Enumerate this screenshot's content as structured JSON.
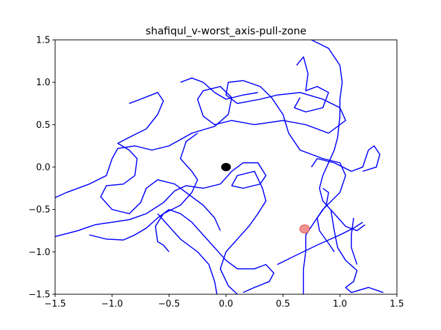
{
  "chart_data": {
    "type": "line",
    "title": "shafiqul_v-worst_axis-pull-zone",
    "xlabel": "",
    "ylabel": "",
    "xlim": [
      -1.5,
      1.5
    ],
    "ylim": [
      -1.5,
      1.5
    ],
    "x_ticks": [
      "−1.5",
      "−1.0",
      "−0.5",
      "0.0",
      "0.5",
      "1.0",
      "1.5"
    ],
    "x_tick_values": [
      -1.5,
      -1.0,
      -0.5,
      0.0,
      0.5,
      1.0,
      1.5
    ],
    "y_ticks": [
      "−1.5",
      "−1.0",
      "−0.5",
      "0.0",
      "0.5",
      "1.0",
      "1.5"
    ],
    "y_tick_values": [
      -1.5,
      -1.0,
      -0.5,
      0.0,
      0.5,
      1.0,
      1.5
    ],
    "grid": false,
    "series": [
      {
        "color": "#0000ff",
        "points": [
          [
            0.68,
            -1.5
          ],
          [
            0.68,
            -1.2
          ],
          [
            0.7,
            -1.0
          ],
          [
            0.7,
            -0.8
          ],
          [
            0.85,
            -0.5
          ],
          [
            1.0,
            -0.3
          ],
          [
            1.05,
            -0.1
          ],
          [
            1.0,
            0.05
          ],
          [
            0.85,
            0.1
          ],
          [
            0.65,
            0.2
          ],
          [
            0.55,
            0.4
          ],
          [
            0.5,
            0.62
          ],
          [
            0.4,
            0.82
          ],
          [
            0.3,
            0.95
          ],
          [
            0.15,
            1.02
          ],
          [
            0.02,
            1.0
          ],
          [
            0.0,
            0.85
          ],
          [
            0.1,
            0.75
          ],
          [
            0.3,
            0.8
          ],
          [
            0.45,
            0.85
          ],
          [
            0.65,
            0.88
          ],
          [
            0.85,
            0.8
          ],
          [
            1.0,
            0.7
          ],
          [
            1.05,
            0.55
          ],
          [
            0.9,
            0.4
          ],
          [
            0.7,
            0.5
          ],
          [
            0.5,
            0.55
          ],
          [
            0.25,
            0.5
          ],
          [
            0.05,
            0.55
          ],
          [
            -0.1,
            0.5
          ],
          [
            -0.2,
            0.6
          ],
          [
            -0.25,
            0.8
          ],
          [
            -0.2,
            0.9
          ],
          [
            -0.05,
            0.95
          ],
          [
            0.05,
            0.82
          ],
          [
            0.02,
            0.62
          ],
          [
            -0.1,
            0.48
          ],
          [
            -0.3,
            0.4
          ],
          [
            -0.5,
            0.25
          ],
          [
            -0.65,
            0.2
          ],
          [
            -0.8,
            0.25
          ],
          [
            -0.95,
            0.22
          ],
          [
            -1.0,
            0.1
          ],
          [
            -1.05,
            -0.1
          ],
          [
            -1.2,
            -0.2
          ],
          [
            -1.4,
            -0.3
          ],
          [
            -1.5,
            -0.36
          ]
        ]
      },
      {
        "color": "#0000ff",
        "points": [
          [
            -1.5,
            -0.82
          ],
          [
            -1.3,
            -0.75
          ],
          [
            -1.15,
            -0.68
          ],
          [
            -1.0,
            -0.65
          ],
          [
            -0.85,
            -0.62
          ],
          [
            -0.7,
            -0.55
          ],
          [
            -0.55,
            -0.42
          ],
          [
            -0.45,
            -0.28
          ],
          [
            -0.35,
            -0.22
          ],
          [
            -0.2,
            -0.25
          ],
          [
            -0.05,
            -0.2
          ],
          [
            0.05,
            -0.05
          ],
          [
            0.15,
            0.05
          ],
          [
            0.28,
            0.05
          ],
          [
            0.35,
            -0.1
          ],
          [
            0.3,
            -0.2
          ],
          [
            0.15,
            -0.25
          ],
          [
            0.05,
            -0.22
          ],
          [
            0.1,
            -0.1
          ],
          [
            0.25,
            -0.05
          ],
          [
            0.32,
            -0.25
          ],
          [
            0.35,
            -0.4
          ],
          [
            0.28,
            -0.55
          ],
          [
            0.2,
            -0.7
          ],
          [
            0.1,
            -0.85
          ],
          [
            0.0,
            -1.0
          ],
          [
            -0.05,
            -1.2
          ],
          [
            0.02,
            -1.4
          ],
          [
            0.1,
            -1.5
          ]
        ]
      },
      {
        "color": "#0000ff",
        "points": [
          [
            -1.2,
            -0.8
          ],
          [
            -1.05,
            -0.85
          ],
          [
            -0.9,
            -0.86
          ],
          [
            -0.8,
            -0.8
          ],
          [
            -0.7,
            -0.72
          ],
          [
            -0.6,
            -0.6
          ],
          [
            -0.5,
            -0.5
          ],
          [
            -0.4,
            -0.55
          ],
          [
            -0.3,
            -0.65
          ],
          [
            -0.2,
            -0.8
          ],
          [
            -0.1,
            -0.95
          ],
          [
            0.0,
            -1.1
          ],
          [
            0.1,
            -1.2
          ],
          [
            0.25,
            -1.2
          ],
          [
            0.35,
            -1.15
          ],
          [
            0.42,
            -1.25
          ],
          [
            0.38,
            -1.35
          ],
          [
            0.25,
            -1.42
          ],
          [
            0.15,
            -1.48
          ]
        ]
      },
      {
        "color": "#0000ff",
        "points": [
          [
            -0.6,
            -0.55
          ],
          [
            -0.5,
            -0.7
          ],
          [
            -0.4,
            -0.85
          ],
          [
            -0.25,
            -1.0
          ],
          [
            -0.15,
            -1.15
          ],
          [
            -0.1,
            -1.35
          ],
          [
            -0.08,
            -1.5
          ]
        ]
      },
      {
        "color": "#0000ff",
        "points": [
          [
            -0.85,
            0.75
          ],
          [
            -0.75,
            0.8
          ],
          [
            -0.6,
            0.88
          ],
          [
            -0.55,
            0.78
          ],
          [
            -0.6,
            0.62
          ],
          [
            -0.7,
            0.45
          ],
          [
            -0.85,
            0.35
          ],
          [
            -0.95,
            0.28
          ],
          [
            -0.85,
            0.2
          ],
          [
            -0.78,
            0.1
          ],
          [
            -0.8,
            -0.1
          ],
          [
            -0.9,
            -0.2
          ],
          [
            -1.05,
            -0.22
          ],
          [
            -1.1,
            -0.35
          ],
          [
            -1.0,
            -0.5
          ],
          [
            -0.85,
            -0.55
          ],
          [
            -0.75,
            -0.42
          ],
          [
            -0.7,
            -0.25
          ],
          [
            -0.6,
            -0.15
          ],
          [
            -0.45,
            -0.2
          ],
          [
            -0.35,
            -0.3
          ],
          [
            -0.2,
            -0.45
          ],
          [
            -0.1,
            -0.6
          ],
          [
            -0.05,
            -0.75
          ]
        ]
      },
      {
        "color": "#0000ff",
        "points": [
          [
            -0.4,
            1.0
          ],
          [
            -0.3,
            1.05
          ],
          [
            -0.2,
            1.0
          ],
          [
            -0.1,
            0.88
          ],
          [
            0.0,
            0.8
          ],
          [
            0.15,
            0.85
          ],
          [
            0.28,
            0.88
          ]
        ]
      },
      {
        "color": "#0000ff",
        "points": [
          [
            0.75,
            1.5
          ],
          [
            0.9,
            1.4
          ],
          [
            1.0,
            1.2
          ],
          [
            1.02,
            1.0
          ],
          [
            1.0,
            0.8
          ],
          [
            1.0,
            0.6
          ],
          [
            0.98,
            0.35
          ],
          [
            0.95,
            0.2
          ],
          [
            0.9,
            0.05
          ],
          [
            0.85,
            -0.1
          ],
          [
            0.82,
            -0.25
          ],
          [
            0.85,
            -0.4
          ],
          [
            0.95,
            -0.55
          ],
          [
            1.05,
            -0.7
          ],
          [
            1.15,
            -0.75
          ],
          [
            1.22,
            -0.68
          ]
        ]
      },
      {
        "color": "#0000ff",
        "points": [
          [
            0.62,
            1.2
          ],
          [
            0.68,
            1.3
          ],
          [
            0.72,
            1.1
          ],
          [
            0.7,
            0.9
          ],
          [
            0.8,
            0.95
          ],
          [
            0.9,
            0.88
          ],
          [
            0.85,
            0.7
          ],
          [
            0.7,
            0.65
          ],
          [
            0.6,
            0.7
          ],
          [
            0.65,
            0.82
          ]
        ]
      },
      {
        "color": "#0000ff",
        "points": [
          [
            0.75,
            0.0
          ],
          [
            0.8,
            0.1
          ],
          [
            0.95,
            0.05
          ],
          [
            1.1,
            -0.05
          ],
          [
            1.2,
            0.0
          ],
          [
            1.25,
            0.2
          ],
          [
            1.3,
            0.25
          ],
          [
            1.35,
            0.15
          ],
          [
            1.32,
            0.0
          ],
          [
            1.2,
            -0.05
          ]
        ]
      },
      {
        "color": "#0000ff",
        "points": [
          [
            0.45,
            -1.15
          ],
          [
            0.6,
            -1.05
          ],
          [
            0.8,
            -0.92
          ],
          [
            1.0,
            -0.8
          ],
          [
            1.12,
            -0.72
          ],
          [
            1.2,
            -0.65
          ]
        ]
      },
      {
        "color": "#0000ff",
        "points": [
          [
            0.92,
            -0.5
          ],
          [
            0.95,
            -0.75
          ],
          [
            0.98,
            -0.95
          ],
          [
            1.05,
            -1.1
          ],
          [
            1.15,
            -1.22
          ],
          [
            1.12,
            -1.35
          ],
          [
            1.05,
            -1.42
          ],
          [
            1.1,
            -1.48
          ],
          [
            1.25,
            -1.42
          ],
          [
            1.38,
            -1.48
          ]
        ]
      },
      {
        "color": "#0000ff",
        "points": [
          [
            1.12,
            -0.6
          ],
          [
            1.1,
            -0.8
          ],
          [
            1.1,
            -0.95
          ],
          [
            1.15,
            -1.15
          ]
        ]
      },
      {
        "color": "#0000ff",
        "points": [
          [
            -0.25,
            0.4
          ],
          [
            -0.35,
            0.3
          ],
          [
            -0.4,
            0.1
          ],
          [
            -0.3,
            -0.05
          ],
          [
            -0.25,
            -0.15
          ],
          [
            -0.3,
            -0.3
          ],
          [
            -0.4,
            -0.45
          ],
          [
            -0.55,
            -0.55
          ],
          [
            -0.62,
            -0.7
          ],
          [
            -0.6,
            -0.88
          ],
          [
            -0.55,
            -0.92
          ],
          [
            -0.5,
            -1.0
          ]
        ]
      },
      {
        "color": "#0000ff",
        "points": [
          [
            0.85,
            -0.25
          ],
          [
            0.9,
            -0.3
          ],
          [
            0.88,
            -0.45
          ],
          [
            0.8,
            -0.6
          ],
          [
            0.82,
            -0.75
          ],
          [
            0.9,
            -0.9
          ],
          [
            0.95,
            -1.0
          ]
        ]
      }
    ],
    "markers": [
      {
        "x": 0.0,
        "y": 0.0,
        "color": "#000000"
      },
      {
        "x": 0.69,
        "y": -0.73,
        "color": "#f08080"
      }
    ]
  }
}
